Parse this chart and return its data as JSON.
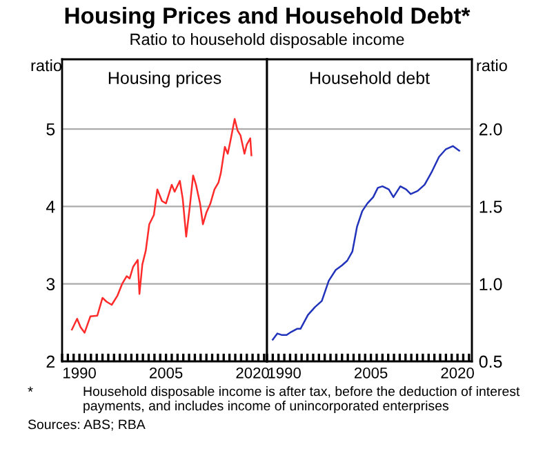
{
  "chart_data": [
    {
      "type": "line",
      "title": "Housing Prices and Household Debt*",
      "subtitle": "Ratio to household disposable income",
      "ylabel": "ratio",
      "xlim": [
        1987,
        2022.5
      ],
      "xticks": [
        {
          "value": 1987,
          "label": null
        },
        {
          "value": 1988,
          "label": null
        },
        {
          "value": 1989,
          "label": null
        },
        1990,
        {
          "value": 1991,
          "label": null
        },
        {
          "value": 1992,
          "label": null
        },
        {
          "value": 1993,
          "label": null
        },
        {
          "value": 1994,
          "label": null
        },
        {
          "value": 1995,
          "label": null
        },
        {
          "value": 1996,
          "label": null
        },
        {
          "value": 1997,
          "label": null
        },
        {
          "value": 1998,
          "label": null
        },
        {
          "value": 1999,
          "label": null
        },
        {
          "value": 2000,
          "label": null
        },
        {
          "value": 2001,
          "label": null
        },
        {
          "value": 2002,
          "label": null
        },
        {
          "value": 2003,
          "label": null
        },
        {
          "value": 2004,
          "label": null
        },
        2005,
        {
          "value": 2006,
          "label": null
        },
        {
          "value": 2007,
          "label": null
        },
        {
          "value": 2008,
          "label": null
        },
        {
          "value": 2009,
          "label": null
        },
        {
          "value": 2010,
          "label": null
        },
        {
          "value": 2011,
          "label": null
        },
        {
          "value": 2012,
          "label": null
        },
        {
          "value": 2013,
          "label": null
        },
        {
          "value": 2014,
          "label": null
        },
        {
          "value": 2015,
          "label": null
        },
        {
          "value": 2016,
          "label": null
        },
        {
          "value": 2017,
          "label": null
        },
        {
          "value": 2018,
          "label": null
        },
        {
          "value": 2019,
          "label": null
        },
        2020,
        {
          "value": 2021,
          "label": null
        },
        {
          "value": 2022,
          "label": null
        }
      ],
      "ylim": [
        2,
        5.9
      ],
      "yticks": [
        2,
        3,
        4,
        5
      ],
      "grid": "y",
      "annotations": [
        "*",
        "Household disposable income is after tax, before the deduction of interest payments, and includes income of unincorporated enterprises",
        "Sources: ABS; RBA"
      ],
      "series": [
        {
          "name": "Housing prices",
          "color": "#ff2a2a",
          "x": [
            1988.7,
            1989.6,
            1990.2,
            1990.9,
            1991.9,
            1993.1,
            1994.0,
            1994.7,
            1995.6,
            1996.6,
            1997.4,
            1998.2,
            1998.7,
            1999.3,
            2000.1,
            2000.4,
            2000.9,
            2001.5,
            2002.1,
            2002.9,
            2003.5,
            2004.3,
            2005.0,
            2006.0,
            2006.5,
            2007.4,
            2007.9,
            2008.5,
            2009.1,
            2009.7,
            2010.2,
            2010.9,
            2011.4,
            2012.0,
            2012.7,
            2013.4,
            2014.1,
            2014.5,
            2015.2,
            2015.7,
            2016.2,
            2016.9,
            2017.4,
            2017.9,
            2018.6,
            2019.0,
            2019.6,
            2019.8
          ],
          "values": [
            2.41,
            2.55,
            2.44,
            2.37,
            2.58,
            2.59,
            2.82,
            2.77,
            2.73,
            2.85,
            3.0,
            3.1,
            3.07,
            3.22,
            3.31,
            2.87,
            3.25,
            3.43,
            3.77,
            3.89,
            4.22,
            4.07,
            4.04,
            4.28,
            4.19,
            4.33,
            4.1,
            3.61,
            3.98,
            4.4,
            4.28,
            4.04,
            3.77,
            3.92,
            4.04,
            4.22,
            4.31,
            4.43,
            4.77,
            4.68,
            4.86,
            5.13,
            4.98,
            4.92,
            4.68,
            4.8,
            4.88,
            4.66
          ]
        }
      ]
    },
    {
      "type": "line",
      "y2label": "ratio",
      "xlim": [
        1987,
        2022.5
      ],
      "xticks": [
        {
          "value": 1987,
          "label": null
        },
        {
          "value": 1988,
          "label": null
        },
        {
          "value": 1989,
          "label": null
        },
        1990,
        {
          "value": 1991,
          "label": null
        },
        {
          "value": 1992,
          "label": null
        },
        {
          "value": 1993,
          "label": null
        },
        {
          "value": 1994,
          "label": null
        },
        {
          "value": 1995,
          "label": null
        },
        {
          "value": 1996,
          "label": null
        },
        {
          "value": 1997,
          "label": null
        },
        {
          "value": 1998,
          "label": null
        },
        {
          "value": 1999,
          "label": null
        },
        {
          "value": 2000,
          "label": null
        },
        {
          "value": 2001,
          "label": null
        },
        {
          "value": 2002,
          "label": null
        },
        {
          "value": 2003,
          "label": null
        },
        {
          "value": 2004,
          "label": null
        },
        2005,
        {
          "value": 2006,
          "label": null
        },
        {
          "value": 2007,
          "label": null
        },
        {
          "value": 2008,
          "label": null
        },
        {
          "value": 2009,
          "label": null
        },
        {
          "value": 2010,
          "label": null
        },
        {
          "value": 2011,
          "label": null
        },
        {
          "value": 2012,
          "label": null
        },
        {
          "value": 2013,
          "label": null
        },
        {
          "value": 2014,
          "label": null
        },
        {
          "value": 2015,
          "label": null
        },
        {
          "value": 2016,
          "label": null
        },
        {
          "value": 2017,
          "label": null
        },
        {
          "value": 2018,
          "label": null
        },
        {
          "value": 2019,
          "label": null
        },
        2020,
        {
          "value": 2021,
          "label": null
        },
        {
          "value": 2022,
          "label": null
        }
      ],
      "y2lim": [
        0.5,
        2.45
      ],
      "y2ticks": [
        {
          "value": 0.5,
          "label": "0.5"
        },
        {
          "value": 1.0,
          "label": "1.0"
        },
        {
          "value": 1.5,
          "label": "1.5"
        },
        {
          "value": 2.0,
          "label": "2.0"
        }
      ],
      "grid": "y",
      "series": [
        {
          "name": "Household debt",
          "color": "#2233bb",
          "axis": "y2",
          "x": [
            1988.0,
            1988.8,
            1989.6,
            1990.4,
            1991.2,
            1992.2,
            1992.8,
            1994.1,
            1995.3,
            1996.5,
            1997.7,
            1998.9,
            2000.0,
            2000.9,
            2001.8,
            2002.6,
            2003.5,
            2004.4,
            2005.4,
            2006.2,
            2007.0,
            2008.1,
            2008.9,
            2010.1,
            2011.1,
            2011.9,
            2013.1,
            2014.3,
            2015.5,
            2016.8,
            2018.0,
            2019.2,
            2020.3
          ],
          "values": [
            0.64,
            0.68,
            0.67,
            0.67,
            0.69,
            0.71,
            0.71,
            0.8,
            0.85,
            0.89,
            1.02,
            1.09,
            1.12,
            1.15,
            1.21,
            1.37,
            1.47,
            1.52,
            1.56,
            1.62,
            1.63,
            1.61,
            1.56,
            1.63,
            1.61,
            1.58,
            1.6,
            1.64,
            1.72,
            1.82,
            1.87,
            1.89,
            1.86
          ]
        }
      ]
    }
  ]
}
